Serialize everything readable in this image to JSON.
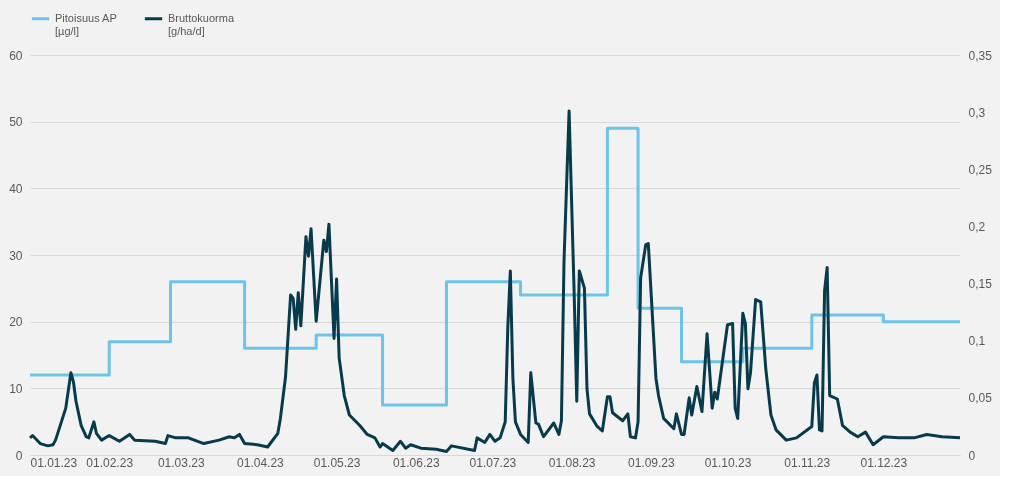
{
  "chart_data": {
    "type": "line",
    "legend": "top",
    "grid": "y",
    "line_style": "solid",
    "xlim": [
      "2023-01-01",
      "2023-12-31"
    ],
    "xticks": [
      {
        "value": "2023-01-01",
        "label": "01.01.23"
      },
      {
        "value": "2023-02-01",
        "label": "01.02.23"
      },
      {
        "value": "2023-03-01",
        "label": "01.03.23"
      },
      {
        "value": "2023-04-01",
        "label": "01.04.23"
      },
      {
        "value": "2023-05-01",
        "label": "01.05.23"
      },
      {
        "value": "2023-06-01",
        "label": "01.06.23"
      },
      {
        "value": "2023-07-01",
        "label": "01.07.23"
      },
      {
        "value": "2023-08-01",
        "label": "01.08.23"
      },
      {
        "value": "2023-09-01",
        "label": "01.09.23"
      },
      {
        "value": "2023-10-01",
        "label": "01.10.23"
      },
      {
        "value": "2023-11-01",
        "label": "01.11.23"
      },
      {
        "value": "2023-12-01",
        "label": "01.12.23"
      }
    ],
    "ylim": [
      0,
      60
    ],
    "yticks": [
      0,
      10,
      20,
      30,
      40,
      50,
      60
    ],
    "y2lim": [
      0,
      0.35
    ],
    "y2ticks": [
      {
        "value": 0,
        "label": "0"
      },
      {
        "value": 0.05,
        "label": "0,05"
      },
      {
        "value": 0.1,
        "label": "0,1"
      },
      {
        "value": 0.15,
        "label": "0,15"
      },
      {
        "value": 0.2,
        "label": "0,2"
      },
      {
        "value": 0.25,
        "label": "0,25"
      },
      {
        "value": 0.3,
        "label": "0,3"
      },
      {
        "value": 0.35,
        "label": "0,35"
      }
    ],
    "series": [
      {
        "name": "Pitoisuus AP\n[µg/l]",
        "type": "step",
        "color": "#6cc4e8",
        "x": [
          "2023-01-01",
          "2023-02-01",
          "2023-02-25",
          "2023-03-26",
          "2023-04-23",
          "2023-05-19",
          "2023-06-13",
          "2023-07-12",
          "2023-08-15",
          "2023-08-27",
          "2023-09-13",
          "2023-10-07",
          "2023-11-03",
          "2023-12-01",
          "2023-12-31"
        ],
        "values": [
          12,
          17,
          26,
          16,
          18,
          7.5,
          26,
          24,
          49,
          22,
          14,
          16,
          21,
          20,
          20
        ]
      },
      {
        "name": "Bruttokuorma\n[g/ha/d]",
        "type": "line",
        "axis": "y2",
        "color": "#073b4c",
        "x": [
          "2023-01-01",
          "2023-01-02",
          "2023-01-05",
          "2023-01-08",
          "2023-01-10",
          "2023-01-11",
          "2023-01-15",
          "2023-01-17",
          "2023-01-18",
          "2023-01-19",
          "2023-01-21",
          "2023-01-23",
          "2023-01-24",
          "2023-01-26",
          "2023-01-27",
          "2023-01-29",
          "2023-02-01",
          "2023-02-05",
          "2023-02-09",
          "2023-02-11",
          "2023-02-19",
          "2023-02-23",
          "2023-02-24",
          "2023-02-27",
          "2023-03-04",
          "2023-03-10",
          "2023-03-16",
          "2023-03-20",
          "2023-03-22",
          "2023-03-24",
          "2023-03-26",
          "2023-03-31",
          "2023-04-04",
          "2023-04-08",
          "2023-04-09",
          "2023-04-11",
          "2023-04-13",
          "2023-04-14",
          "2023-04-15",
          "2023-04-16",
          "2023-04-17",
          "2023-04-19",
          "2023-04-20",
          "2023-04-21",
          "2023-04-23",
          "2023-04-26",
          "2023-04-27",
          "2023-04-28",
          "2023-04-30",
          "2023-05-01",
          "2023-05-02",
          "2023-05-04",
          "2023-05-06",
          "2023-05-10",
          "2023-05-13",
          "2023-05-16",
          "2023-05-18",
          "2023-05-19",
          "2023-05-23",
          "2023-05-26",
          "2023-05-28",
          "2023-05-30",
          "2023-06-03",
          "2023-06-09",
          "2023-06-13",
          "2023-06-15",
          "2023-06-24",
          "2023-06-25",
          "2023-06-28",
          "2023-06-30",
          "2023-07-02",
          "2023-07-04",
          "2023-07-06",
          "2023-07-07",
          "2023-07-08",
          "2023-07-09",
          "2023-07-10",
          "2023-07-12",
          "2023-07-15",
          "2023-07-16",
          "2023-07-18",
          "2023-07-19",
          "2023-07-21",
          "2023-07-25",
          "2023-07-27",
          "2023-07-28",
          "2023-07-29",
          "2023-07-31",
          "2023-08-02",
          "2023-08-03",
          "2023-08-04",
          "2023-08-06",
          "2023-08-07",
          "2023-08-08",
          "2023-08-11",
          "2023-08-13",
          "2023-08-15",
          "2023-08-16",
          "2023-08-17",
          "2023-08-21",
          "2023-08-23",
          "2023-08-24",
          "2023-08-26",
          "2023-08-27",
          "2023-08-28",
          "2023-08-30",
          "2023-08-31",
          "2023-09-03",
          "2023-09-04",
          "2023-09-06",
          "2023-09-10",
          "2023-09-11",
          "2023-09-13",
          "2023-09-14",
          "2023-09-16",
          "2023-09-17",
          "2023-09-19",
          "2023-09-21",
          "2023-09-23",
          "2023-09-25",
          "2023-09-26",
          "2023-09-27",
          "2023-10-01",
          "2023-10-03",
          "2023-10-04",
          "2023-10-05",
          "2023-10-07",
          "2023-10-08",
          "2023-10-09",
          "2023-10-10",
          "2023-10-12",
          "2023-10-14",
          "2023-10-16",
          "2023-10-18",
          "2023-10-20",
          "2023-10-24",
          "2023-10-28",
          "2023-11-03",
          "2023-11-04",
          "2023-11-05",
          "2023-11-06",
          "2023-11-07",
          "2023-11-08",
          "2023-11-09",
          "2023-11-10",
          "2023-11-13",
          "2023-11-15",
          "2023-11-18",
          "2023-11-21",
          "2023-11-24",
          "2023-11-27",
          "2023-12-01",
          "2023-12-07",
          "2023-12-13",
          "2023-12-18",
          "2023-12-24",
          "2023-12-31"
        ],
        "values": [
          0.015,
          0.017,
          0.01,
          0.008,
          0.009,
          0.013,
          0.041,
          0.072,
          0.064,
          0.047,
          0.026,
          0.016,
          0.015,
          0.029,
          0.019,
          0.013,
          0.017,
          0.012,
          0.018,
          0.013,
          0.012,
          0.01,
          0.017,
          0.015,
          0.015,
          0.01,
          0.013,
          0.016,
          0.015,
          0.018,
          0.01,
          0.009,
          0.007,
          0.019,
          0.032,
          0.068,
          0.14,
          0.137,
          0.11,
          0.142,
          0.113,
          0.191,
          0.174,
          0.198,
          0.117,
          0.188,
          0.178,
          0.202,
          0.102,
          0.154,
          0.085,
          0.052,
          0.035,
          0.026,
          0.018,
          0.015,
          0.007,
          0.01,
          0.004,
          0.012,
          0.006,
          0.009,
          0.006,
          0.005,
          0.003,
          0.008,
          0.004,
          0.015,
          0.011,
          0.018,
          0.012,
          0.015,
          0.029,
          0.111,
          0.161,
          0.067,
          0.029,
          0.018,
          0.011,
          0.072,
          0.028,
          0.027,
          0.016,
          0.028,
          0.018,
          0.03,
          0.169,
          0.301,
          0.14,
          0.047,
          0.161,
          0.146,
          0.058,
          0.036,
          0.025,
          0.021,
          0.051,
          0.051,
          0.037,
          0.03,
          0.036,
          0.016,
          0.015,
          0.029,
          0.155,
          0.184,
          0.185,
          0.067,
          0.052,
          0.032,
          0.023,
          0.036,
          0.018,
          0.018,
          0.05,
          0.035,
          0.06,
          0.038,
          0.106,
          0.041,
          0.055,
          0.049,
          0.114,
          0.115,
          0.041,
          0.032,
          0.124,
          0.115,
          0.058,
          0.072,
          0.136,
          0.134,
          0.075,
          0.035,
          0.022,
          0.013,
          0.015,
          0.025,
          0.063,
          0.07,
          0.022,
          0.021,
          0.144,
          0.164,
          0.052,
          0.049,
          0.026,
          0.02,
          0.016,
          0.02,
          0.009,
          0.016,
          0.015,
          0.015,
          0.018,
          0.016,
          0.015
        ]
      }
    ]
  }
}
